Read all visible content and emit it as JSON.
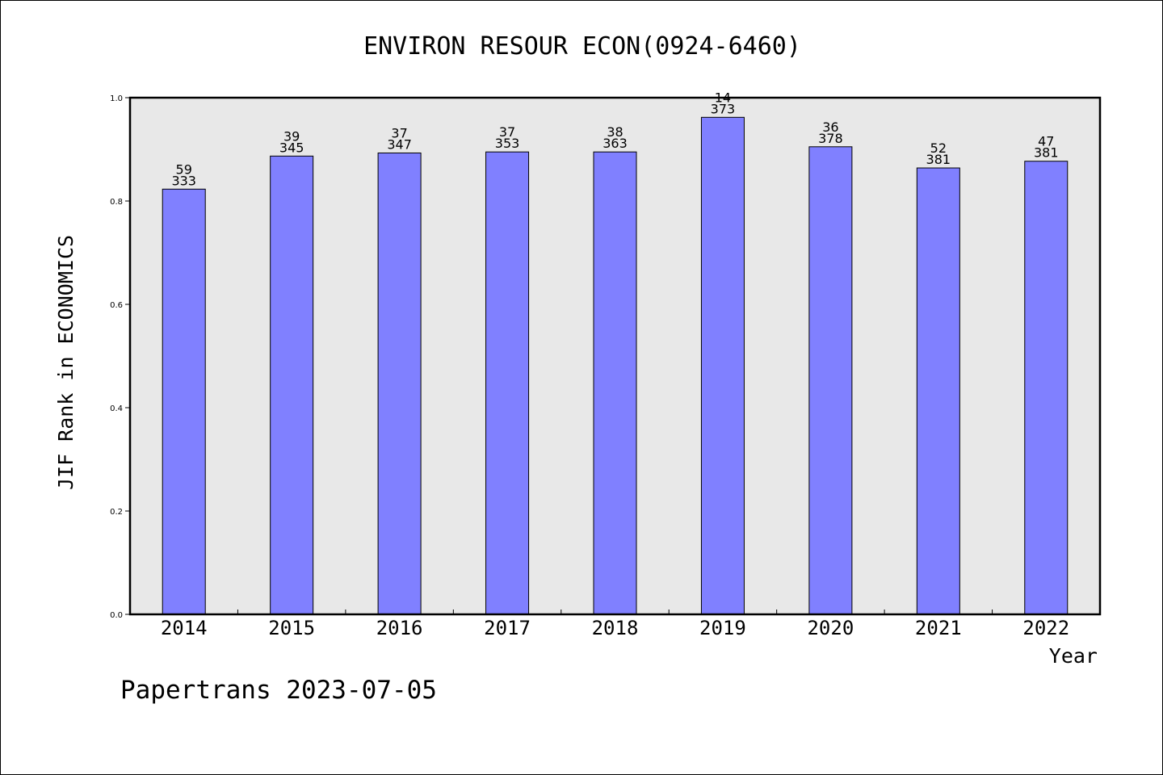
{
  "footer": {
    "watermark": "Papertrans 2023-07-05"
  },
  "colors": {
    "plot_background": "#e8e8e8",
    "bar_fill": "#8080ff",
    "bar_stroke": "#000000"
  },
  "chart_data": {
    "type": "bar",
    "title": "ENVIRON RESOUR ECON(0924-6460)",
    "xlabel": "Year",
    "ylabel": "JIF Rank in ECONOMICS",
    "ylim": [
      0,
      1
    ],
    "yticks": [
      "0.0",
      "0.2",
      "0.4",
      "0.6",
      "0.8",
      "1.0"
    ],
    "grid": false,
    "categories": [
      "2014",
      "2015",
      "2016",
      "2017",
      "2018",
      "2019",
      "2020",
      "2021",
      "2022"
    ],
    "values": [
      0.823,
      0.887,
      0.893,
      0.895,
      0.895,
      0.962,
      0.905,
      0.864,
      0.877
    ],
    "rank": [
      "59",
      "39",
      "37",
      "37",
      "38",
      "14",
      "36",
      "52",
      "47"
    ],
    "total": [
      "333",
      "345",
      "347",
      "353",
      "363",
      "373",
      "378",
      "381",
      "381"
    ]
  }
}
